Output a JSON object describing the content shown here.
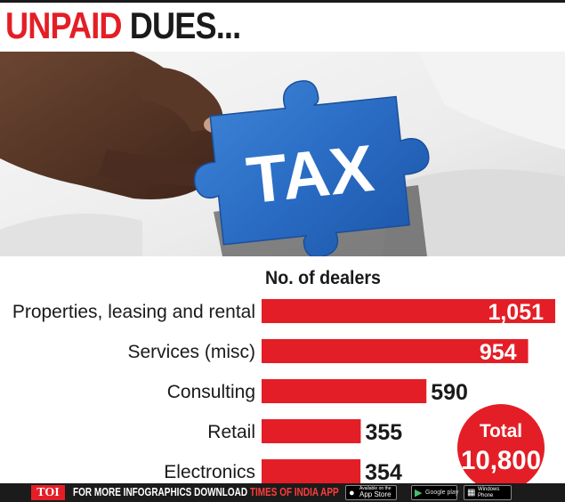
{
  "headline": {
    "part1": "UNPAID",
    "part2": "DUES..."
  },
  "photo": {
    "puzzle_text": "TAX"
  },
  "chart_data": {
    "type": "bar",
    "orientation": "horizontal",
    "title": "No. of dealers",
    "categories": [
      "Properties, leasing and rental",
      "Services (misc)",
      "Consulting",
      "Retail",
      "Electronics"
    ],
    "values": [
      1051,
      954,
      590,
      355,
      354
    ],
    "value_labels": [
      "1,051",
      "954",
      "590",
      "355",
      "354"
    ],
    "total_label": "Total",
    "total_value": "10,800",
    "colors": {
      "bar": "#e41e26",
      "total_circle": "#e41e26",
      "value_text": "#1a1a1a",
      "inside_text": "#ffffff"
    }
  },
  "footer": {
    "logo": "TOI",
    "message_white": "FOR MORE  INFOGRAPHICS DOWNLOAD",
    "message_red": "TIMES OF INDIA APP",
    "app_store": {
      "small": "Available on the",
      "big": "App Store",
      "icon": "apple-icon"
    },
    "google_play": {
      "big": "Google play",
      "icon": "play-triangle-icon"
    },
    "windows_phone": {
      "line1": "Windows",
      "line2": "Phone",
      "icon": "windows-icon"
    }
  }
}
